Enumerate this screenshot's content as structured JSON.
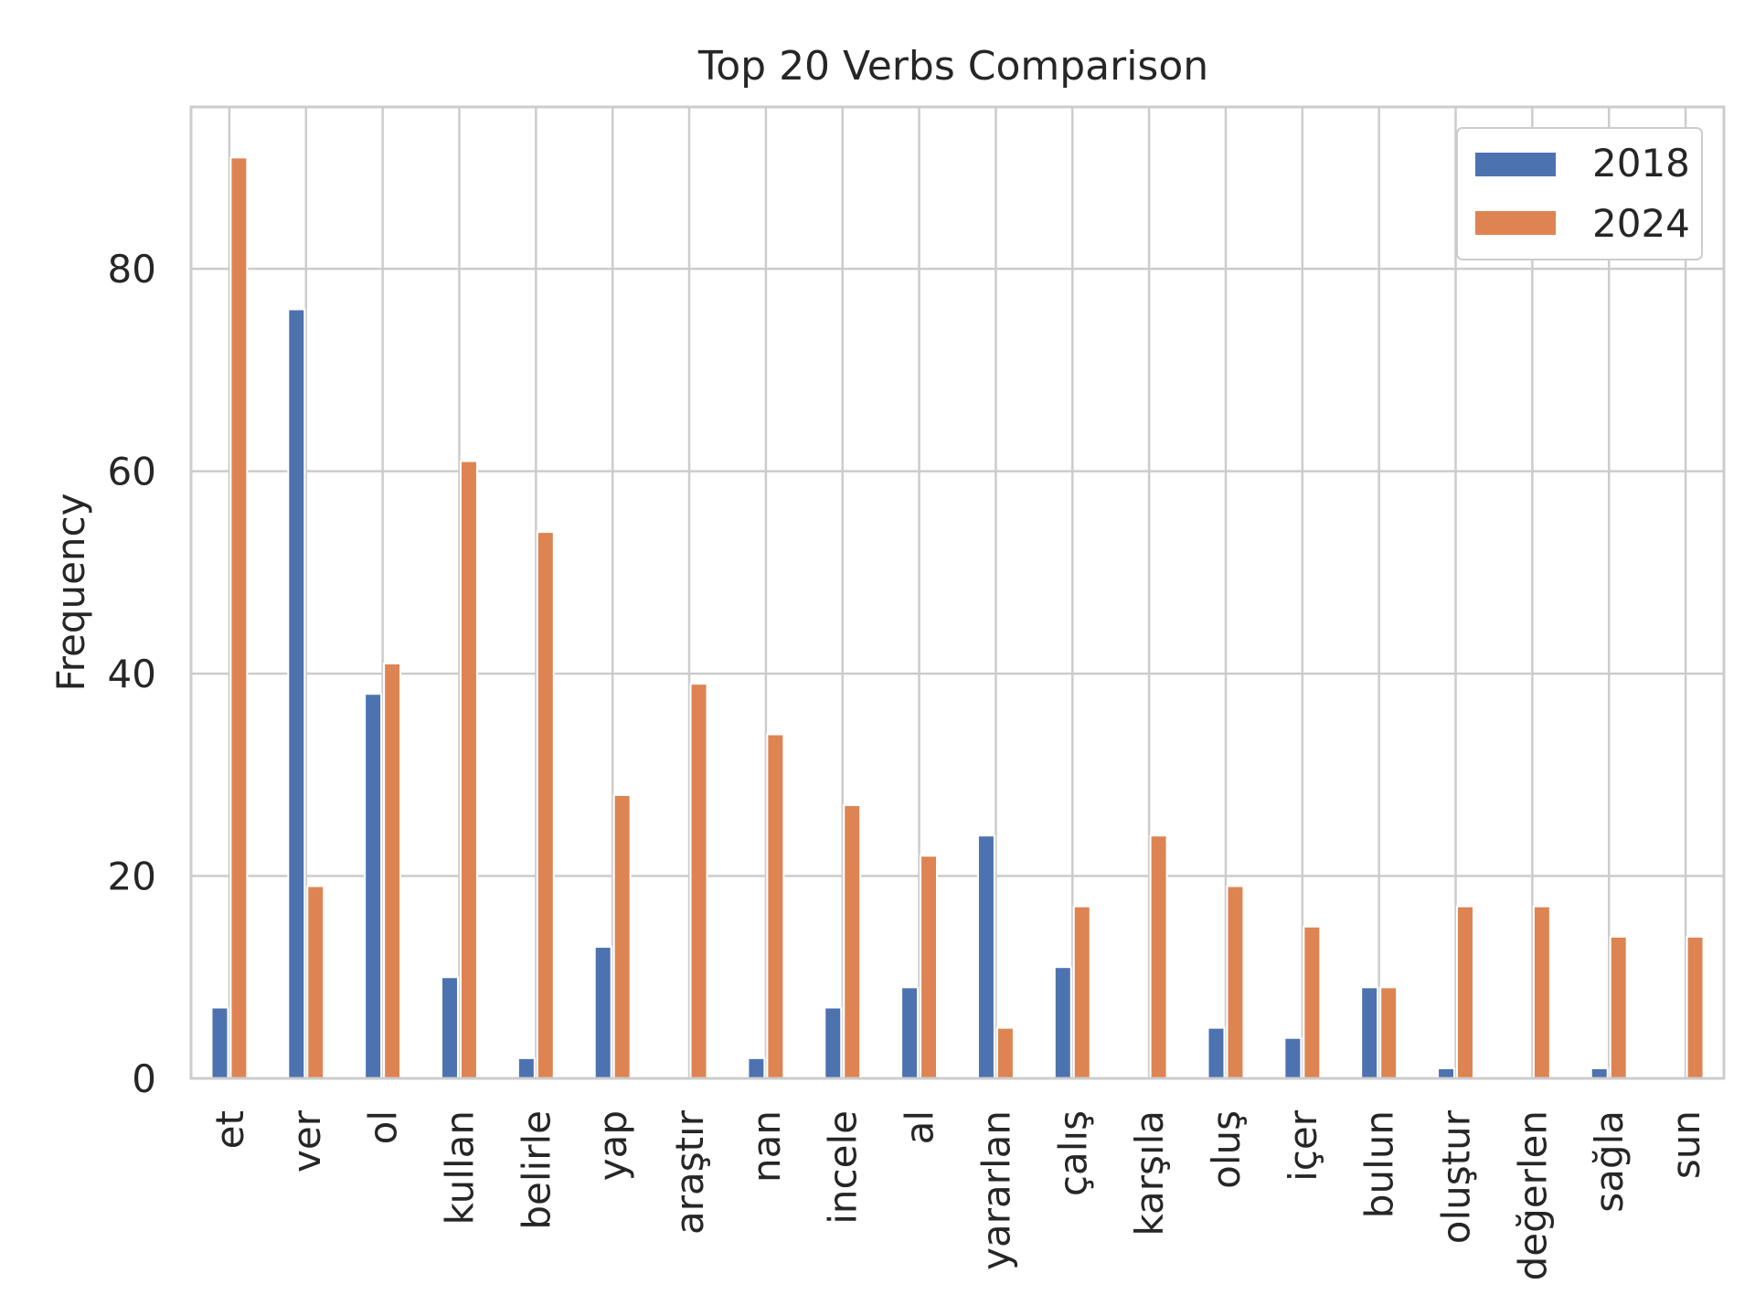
{
  "chart_data": {
    "type": "bar",
    "title": "Top 20 Verbs Comparison",
    "xlabel": "",
    "ylabel": "Frequency",
    "ylim": [
      0,
      96
    ],
    "yticks": [
      0,
      20,
      40,
      60,
      80
    ],
    "grid": true,
    "legend_position": "top-right",
    "categories": [
      "et",
      "ver",
      "ol",
      "kullan",
      "belirle",
      "yap",
      "araştır",
      "nan",
      "incele",
      "al",
      "yararlan",
      "çalış",
      "karşıla",
      "oluş",
      "içer",
      "bulun",
      "oluştur",
      "değerlen",
      "sağla",
      "sun"
    ],
    "series": [
      {
        "name": "2018",
        "color": "#4c72b0",
        "values": [
          7,
          76,
          38,
          10,
          2,
          13,
          0,
          2,
          7,
          9,
          24,
          11,
          0,
          5,
          4,
          9,
          1,
          0,
          1,
          0
        ]
      },
      {
        "name": "2024",
        "color": "#dd8452",
        "values": [
          91,
          19,
          41,
          61,
          54,
          28,
          39,
          34,
          27,
          22,
          5,
          17,
          24,
          19,
          15,
          9,
          17,
          17,
          14,
          14
        ]
      }
    ]
  }
}
